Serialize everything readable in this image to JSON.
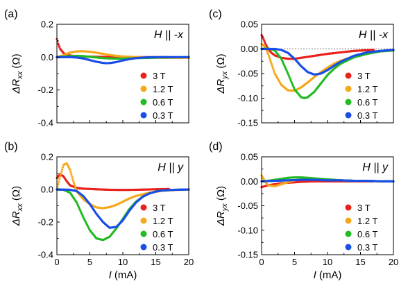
{
  "legend_labels": [
    "3 T",
    "1.2 T",
    "0.6 T",
    "0.3 T"
  ],
  "colors": {
    "3 T": "#e8221c",
    "1.2 T": "#f5a81c",
    "0.6 T": "#22bb22",
    "0.3 T": "#1a4fe6"
  },
  "x_label_text": "I (mA)",
  "chart_data": [
    {
      "type": "scatter",
      "panel": "(a)",
      "field": "H || -x",
      "ylabel": "ΔRxx (Ω)",
      "xlim": [
        0,
        20
      ],
      "ylim": [
        -0.4,
        0.2
      ],
      "yticks": [
        0.2,
        0.0,
        -0.2,
        -0.4
      ],
      "ytick_labels": [
        "0.2",
        "0.0",
        "-0.2",
        "-0.4"
      ],
      "xticks": [
        0,
        5,
        10,
        15,
        20
      ],
      "xtick_labels": [],
      "series": [
        {
          "name": "3 T",
          "x": [
            0,
            0.2,
            0.5,
            1,
            1.5,
            2,
            3,
            4,
            5,
            6,
            8,
            10,
            12,
            14,
            17
          ],
          "y": [
            0.11,
            0.08,
            0.05,
            0.025,
            0.015,
            0.01,
            0.005,
            0.004,
            0.003,
            0.002,
            0.001,
            0,
            0,
            0,
            0
          ]
        },
        {
          "name": "1.2 T",
          "x": [
            0,
            0.5,
            1,
            1.5,
            2,
            3,
            4,
            5,
            6,
            7,
            8,
            9,
            10,
            12,
            14,
            16,
            18,
            20
          ],
          "y": [
            0,
            0.005,
            0.012,
            0.02,
            0.028,
            0.035,
            0.036,
            0.033,
            0.027,
            0.02,
            0.013,
            0.008,
            0.004,
            0,
            -0.003,
            -0.004,
            -0.004,
            -0.004
          ]
        },
        {
          "name": "0.6 T",
          "x": [
            0,
            1,
            2,
            3,
            4,
            5,
            6,
            7,
            8,
            9,
            10,
            11,
            12,
            14,
            16,
            18,
            20
          ],
          "y": [
            0,
            0.003,
            0.006,
            0.008,
            0.006,
            0.002,
            -0.002,
            -0.006,
            -0.008,
            -0.009,
            -0.009,
            -0.008,
            -0.006,
            -0.004,
            -0.002,
            -0.001,
            0
          ]
        },
        {
          "name": "0.3 T",
          "x": [
            0,
            2,
            3,
            4,
            5,
            6,
            7,
            7.5,
            8,
            9,
            10,
            11,
            12,
            13,
            14,
            16,
            18,
            20
          ],
          "y": [
            0,
            0,
            -0.002,
            -0.008,
            -0.018,
            -0.028,
            -0.035,
            -0.037,
            -0.036,
            -0.03,
            -0.02,
            -0.012,
            -0.006,
            -0.003,
            -0.001,
            0,
            0,
            0
          ]
        }
      ]
    },
    {
      "type": "scatter",
      "panel": "(b)",
      "field": "H || y",
      "ylabel": "ΔRxx (Ω)",
      "xlim": [
        0,
        20
      ],
      "ylim": [
        -0.4,
        0.2
      ],
      "yticks": [
        0.2,
        0.0,
        -0.2,
        -0.4
      ],
      "ytick_labels": [
        "0.2",
        "0.0",
        "-0.2",
        "-0.4"
      ],
      "xticks": [
        0,
        5,
        10,
        15,
        20
      ],
      "xtick_labels": [
        "0",
        "5",
        "10",
        "15",
        "20"
      ],
      "series": [
        {
          "name": "3 T",
          "x": [
            0,
            0.5,
            1,
            1.5,
            2,
            3,
            4,
            5,
            6,
            8,
            10,
            12,
            14,
            17
          ],
          "y": [
            0.07,
            0.095,
            0.08,
            0.05,
            0.025,
            0.01,
            0.005,
            0.003,
            0.001,
            -0.002,
            -0.003,
            -0.002,
            0,
            0.003
          ]
        },
        {
          "name": "1.2 T",
          "x": [
            0,
            0.5,
            1,
            1.5,
            2,
            2.5,
            3,
            4,
            5,
            6,
            7,
            8,
            9,
            10,
            11,
            12,
            14,
            16,
            18,
            20
          ],
          "y": [
            0,
            0.08,
            0.15,
            0.16,
            0.12,
            0.05,
            -0.01,
            -0.06,
            -0.09,
            -0.11,
            -0.115,
            -0.108,
            -0.095,
            -0.075,
            -0.055,
            -0.04,
            -0.02,
            -0.008,
            -0.003,
            -0.001
          ]
        },
        {
          "name": "0.6 T",
          "x": [
            0,
            1,
            2,
            3,
            4,
            5,
            6,
            7,
            8,
            9,
            10,
            11,
            12,
            13,
            14,
            15,
            16,
            18,
            20
          ],
          "y": [
            0,
            -0.002,
            -0.02,
            -0.08,
            -0.17,
            -0.25,
            -0.3,
            -0.31,
            -0.29,
            -0.24,
            -0.18,
            -0.12,
            -0.075,
            -0.045,
            -0.025,
            -0.013,
            -0.006,
            -0.002,
            0
          ]
        },
        {
          "name": "0.3 T",
          "x": [
            0,
            2,
            3,
            4,
            5,
            6,
            7,
            8,
            9,
            10,
            11,
            12,
            13,
            14,
            15,
            16,
            18,
            20
          ],
          "y": [
            0,
            -0.002,
            -0.01,
            -0.04,
            -0.09,
            -0.15,
            -0.2,
            -0.235,
            -0.23,
            -0.19,
            -0.13,
            -0.08,
            -0.045,
            -0.025,
            -0.013,
            -0.006,
            -0.002,
            0
          ]
        }
      ]
    },
    {
      "type": "scatter",
      "panel": "(c)",
      "field": "H || -x",
      "ylabel": "ΔRyx (Ω)",
      "xlim": [
        0,
        20
      ],
      "ylim": [
        -0.15,
        0.05
      ],
      "yticks": [
        0.05,
        0.0,
        -0.05,
        -0.1,
        -0.15
      ],
      "ytick_labels": [
        "0.05",
        "0.00",
        "-0.05",
        "-0.10",
        "-0.15"
      ],
      "xticks": [
        0,
        5,
        10,
        15,
        20
      ],
      "xtick_labels": [],
      "series": [
        {
          "name": "3 T",
          "x": [
            0,
            0.3,
            0.6,
            1,
            1.5,
            2,
            3,
            4,
            5,
            6,
            7,
            8,
            10,
            12,
            14,
            17
          ],
          "y": [
            0.028,
            0.02,
            0.01,
            0.0,
            -0.008,
            -0.013,
            -0.018,
            -0.02,
            -0.02,
            -0.018,
            -0.016,
            -0.014,
            -0.01,
            -0.007,
            -0.004,
            -0.002
          ]
        },
        {
          "name": "1.2 T",
          "x": [
            0,
            0.5,
            1,
            1.5,
            2,
            3,
            4,
            5,
            6,
            7,
            8,
            9,
            10,
            11,
            12,
            14,
            16,
            18,
            20
          ],
          "y": [
            0.01,
            0.005,
            -0.01,
            -0.03,
            -0.05,
            -0.073,
            -0.084,
            -0.085,
            -0.078,
            -0.068,
            -0.057,
            -0.047,
            -0.038,
            -0.03,
            -0.024,
            -0.015,
            -0.009,
            -0.005,
            -0.003
          ]
        },
        {
          "name": "0.6 T",
          "x": [
            0,
            1,
            2,
            3,
            4,
            5,
            6,
            6.5,
            7,
            8,
            9,
            10,
            11,
            12,
            14,
            16,
            18,
            20
          ],
          "y": [
            0,
            0.001,
            -0.003,
            -0.02,
            -0.05,
            -0.082,
            -0.098,
            -0.1,
            -0.098,
            -0.087,
            -0.07,
            -0.053,
            -0.04,
            -0.03,
            -0.017,
            -0.01,
            -0.005,
            -0.003
          ]
        },
        {
          "name": "0.3 T",
          "x": [
            0,
            2,
            3,
            4,
            5,
            6,
            7,
            8,
            9,
            10,
            11,
            12,
            14,
            16,
            18,
            20
          ],
          "y": [
            0,
            0,
            -0.002,
            -0.008,
            -0.02,
            -0.035,
            -0.047,
            -0.052,
            -0.05,
            -0.043,
            -0.034,
            -0.026,
            -0.014,
            -0.007,
            -0.004,
            -0.002
          ]
        }
      ]
    },
    {
      "type": "scatter",
      "panel": "(d)",
      "field": "H || y",
      "ylabel": "ΔRyx (Ω)",
      "xlim": [
        0,
        20
      ],
      "ylim": [
        -0.15,
        0.05
      ],
      "yticks": [
        0.05,
        0.0,
        -0.05,
        -0.1,
        -0.15
      ],
      "ytick_labels": [
        "0.05",
        "0.00",
        "-0.05",
        "-0.10",
        "-0.15"
      ],
      "xticks": [
        0,
        5,
        10,
        15,
        20
      ],
      "xtick_labels": [
        "0",
        "5",
        "10",
        "15",
        "20"
      ],
      "series": [
        {
          "name": "3 T",
          "x": [
            0,
            0.5,
            1,
            2,
            3,
            4,
            5,
            6,
            8,
            10,
            12,
            14,
            17
          ],
          "y": [
            -0.012,
            -0.01,
            -0.008,
            -0.006,
            -0.004,
            -0.003,
            -0.002,
            -0.001,
            0,
            0,
            0,
            0,
            0
          ]
        },
        {
          "name": "1.2 T",
          "x": [
            0,
            0.5,
            1,
            2,
            3,
            4,
            5,
            6,
            7,
            8,
            10,
            12,
            14,
            16,
            18,
            20
          ],
          "y": [
            0.012,
            0.0,
            -0.008,
            -0.01,
            -0.006,
            -0.002,
            0.002,
            0.004,
            0.005,
            0.004,
            0.003,
            0.002,
            0.001,
            0.001,
            0,
            0
          ]
        },
        {
          "name": "0.6 T",
          "x": [
            0,
            1,
            2,
            3,
            4,
            5,
            6,
            7,
            8,
            9,
            10,
            12,
            14,
            16,
            18,
            20
          ],
          "y": [
            0,
            0.001,
            0.003,
            0.005,
            0.007,
            0.008,
            0.008,
            0.007,
            0.006,
            0.005,
            0.004,
            0.002,
            0.001,
            0.001,
            0,
            0
          ]
        },
        {
          "name": "0.3 T",
          "x": [
            0,
            2,
            4,
            6,
            8,
            10,
            12,
            14,
            16,
            18,
            20
          ],
          "y": [
            0,
            0.001,
            0.002,
            0.003,
            0.003,
            0.002,
            0.002,
            0.001,
            0.001,
            0,
            0
          ]
        }
      ]
    }
  ]
}
